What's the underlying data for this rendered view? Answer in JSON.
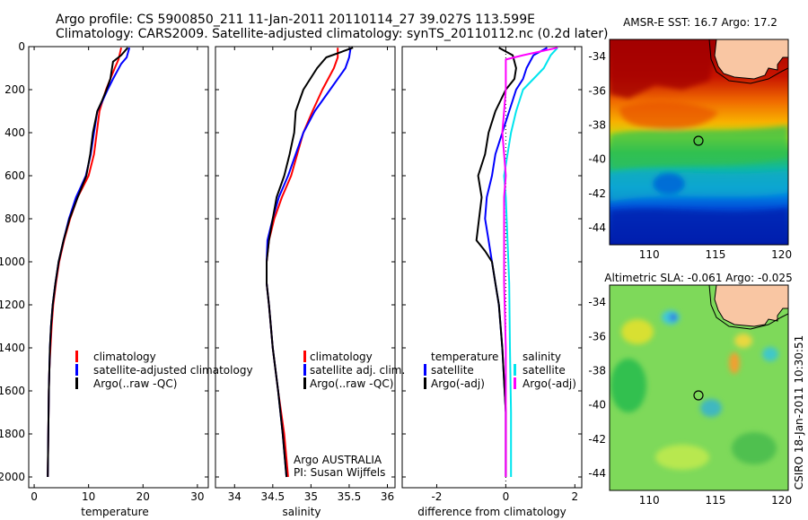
{
  "header": {
    "line1": "Argo profile: CS 5900850_211 11-Jan-2011 20110114_27 39.027S 113.599E",
    "line2": "Climatology: CARS2009. Satellite-adjusted climatology: synTS_20110112.nc (0.2d later)"
  },
  "sst_map": {
    "title": "AMSR-E SST: 16.7 Argo: 17.2"
  },
  "sla_map": {
    "title": "Altimetric SLA: -0.061 Argo: -0.025"
  },
  "side_label": "CSIRO 18-Jan-2011 10:30:51",
  "footnote": {
    "line1": "Argo AUSTRALIA",
    "line2": "PI: Susan Wijffels"
  },
  "colors": {
    "climatology": "#ff0000",
    "satellite": "#0000ff",
    "argo": "#000000",
    "salinity_satellite": "#00e5ee",
    "salinity_argo": "#ff00ff"
  },
  "chart_data": [
    {
      "type": "line",
      "id": "temperature",
      "xlabel": "temperature",
      "ylabel": "",
      "xlim": [
        -1,
        32
      ],
      "ylim": [
        2050,
        0
      ],
      "xticks": [
        0,
        10,
        20,
        30
      ],
      "yticks": [
        0,
        200,
        400,
        600,
        800,
        1000,
        1200,
        1400,
        1600,
        1800,
        2000
      ],
      "legend": [
        "climatology",
        "satellite-adjusted climatology",
        "Argo(..raw -QC)"
      ],
      "series": [
        {
          "name": "climatology",
          "color": "#ff0000",
          "x": [
            16.0,
            15.5,
            14.8,
            14.0,
            13.2,
            12.6,
            12.0,
            11.5,
            11.0,
            10.0,
            9.0,
            8.0,
            6.6,
            5.5,
            4.6,
            4.0,
            3.5,
            3.2,
            3.0,
            2.8,
            2.7,
            2.6,
            2.5
          ],
          "y": [
            5,
            60,
            100,
            150,
            200,
            250,
            300,
            400,
            500,
            600,
            650,
            700,
            800,
            900,
            1000,
            1100,
            1200,
            1300,
            1400,
            1500,
            1600,
            1800,
            2000
          ]
        },
        {
          "name": "satellite-adjusted climatology",
          "color": "#0000ff",
          "x": [
            17.5,
            17.0,
            16.0,
            14.5,
            13.5,
            12.6,
            11.6,
            11.0,
            10.4,
            9.5,
            8.6,
            7.7,
            6.4,
            5.4,
            4.5,
            3.9,
            3.4,
            3.1,
            2.9,
            2.8,
            2.7,
            2.6,
            2.5
          ],
          "y": [
            5,
            50,
            80,
            150,
            200,
            250,
            300,
            400,
            500,
            600,
            650,
            700,
            800,
            900,
            1000,
            1100,
            1200,
            1300,
            1400,
            1500,
            1600,
            1800,
            2000
          ]
        },
        {
          "name": "Argo(..raw -QC)",
          "color": "#000000",
          "x": [
            17.2,
            16.0,
            14.5,
            14.0,
            13.3,
            12.5,
            11.6,
            10.8,
            10.3,
            9.6,
            8.8,
            8.0,
            6.5,
            5.4,
            4.5,
            3.9,
            3.4,
            3.1,
            2.9,
            2.8,
            2.7,
            2.6,
            2.5
          ],
          "y": [
            5,
            40,
            70,
            150,
            200,
            250,
            300,
            400,
            500,
            600,
            650,
            700,
            800,
            900,
            1000,
            1100,
            1200,
            1300,
            1400,
            1500,
            1600,
            1800,
            2000
          ]
        }
      ]
    },
    {
      "type": "line",
      "id": "salinity",
      "xlabel": "salinity",
      "ylabel": "",
      "xlim": [
        33.75,
        36.1
      ],
      "ylim": [
        2050,
        0
      ],
      "xticks": [
        34,
        34.5,
        35,
        35.5,
        36
      ],
      "legend": [
        "climatology",
        "satellite adj. clim.",
        "Argo(..raw -QC)"
      ],
      "series": [
        {
          "name": "climatology",
          "color": "#ff0000",
          "x": [
            35.35,
            35.35,
            35.3,
            35.15,
            35.02,
            34.9,
            34.82,
            34.74,
            34.62,
            34.52,
            34.45,
            34.42,
            34.42,
            34.45,
            34.5,
            34.57,
            34.65,
            34.7
          ],
          "y": [
            5,
            50,
            100,
            200,
            300,
            400,
            500,
            600,
            700,
            800,
            900,
            1000,
            1100,
            1200,
            1400,
            1600,
            1800,
            2000
          ]
        },
        {
          "name": "satellite adj. clim.",
          "color": "#0000ff",
          "x": [
            35.52,
            35.5,
            35.45,
            35.25,
            35.05,
            34.9,
            34.8,
            34.7,
            34.58,
            34.5,
            34.43,
            34.42,
            34.42,
            34.45,
            34.5,
            34.57,
            34.63,
            34.68
          ],
          "y": [
            5,
            50,
            100,
            200,
            300,
            400,
            500,
            600,
            700,
            800,
            900,
            1000,
            1100,
            1200,
            1400,
            1600,
            1800,
            2000
          ]
        },
        {
          "name": "Argo(..raw -QC)",
          "color": "#000000",
          "x": [
            35.55,
            35.2,
            35.08,
            34.9,
            34.8,
            34.78,
            34.72,
            34.65,
            34.55,
            34.5,
            34.45,
            34.42,
            34.42,
            34.45,
            34.5,
            34.57,
            34.63,
            34.68
          ],
          "y": [
            5,
            50,
            100,
            200,
            300,
            400,
            500,
            600,
            700,
            800,
            900,
            1000,
            1100,
            1200,
            1400,
            1600,
            1800,
            2000
          ]
        }
      ]
    },
    {
      "type": "line",
      "id": "difference",
      "xlabel": "difference from climatology",
      "ylabel": "",
      "xlim": [
        -3,
        2.2
      ],
      "ylim": [
        2050,
        0
      ],
      "xticks": [
        -2,
        0,
        2
      ],
      "legend": [
        "temperature",
        "satellite",
        "Argo(-adj)",
        "salinity",
        "satellite",
        "Argo(-adj)"
      ],
      "series": [
        {
          "name": "temperature satellite",
          "color": "#0000ff",
          "x": [
            1.2,
            0.8,
            0.6,
            0.5,
            0.3,
            0.1,
            -0.1,
            -0.3,
            -0.4,
            -0.55,
            -0.6,
            -0.5,
            -0.4,
            -0.3,
            -0.2,
            -0.1,
            0.0,
            0.0
          ],
          "y": [
            5,
            40,
            100,
            150,
            200,
            300,
            400,
            500,
            600,
            700,
            800,
            900,
            1000,
            1100,
            1200,
            1400,
            1700,
            2000
          ]
        },
        {
          "name": "temperature Argo(-adj)",
          "color": "#000000",
          "x": [
            -0.2,
            0.2,
            0.3,
            0.25,
            0.0,
            -0.3,
            -0.5,
            -0.6,
            -0.8,
            -0.7,
            -0.85,
            -0.6,
            -0.4,
            -0.3,
            -0.2,
            -0.1,
            0.0,
            0.0
          ],
          "y": [
            5,
            40,
            100,
            150,
            200,
            300,
            400,
            500,
            600,
            700,
            900,
            950,
            1000,
            1100,
            1200,
            1400,
            1700,
            2000
          ]
        },
        {
          "name": "salinity satellite",
          "color": "#00e5ee",
          "x": [
            1.5,
            1.3,
            1.1,
            0.8,
            0.5,
            0.3,
            0.15,
            0.05,
            -0.05,
            0.0,
            0.05,
            0.1,
            0.12,
            0.15,
            0.15
          ],
          "y": [
            5,
            40,
            100,
            150,
            200,
            300,
            400,
            500,
            600,
            700,
            900,
            1100,
            1400,
            1700,
            2000
          ]
        },
        {
          "name": "salinity Argo(-adj)",
          "color": "#ff00ff",
          "x": [
            1.5,
            0.5,
            0.0,
            0.0,
            0.0,
            -0.05,
            -0.1,
            -0.05,
            0.0,
            -0.05,
            -0.05,
            -0.05,
            0.0,
            0.0,
            0.0
          ],
          "y": [
            5,
            40,
            60,
            100,
            200,
            300,
            400,
            500,
            600,
            700,
            900,
            1100,
            1400,
            1700,
            2000
          ]
        }
      ]
    },
    {
      "type": "heatmap",
      "id": "sst_map",
      "title": "AMSR-E SST: 16.7 Argo: 17.2",
      "xlim": [
        107,
        120.5
      ],
      "ylim": [
        -45,
        -33
      ],
      "xticks": [
        110,
        115,
        120
      ],
      "yticks": [
        -34,
        -36,
        -38,
        -40,
        -42,
        -44
      ],
      "marker": {
        "lon": 113.6,
        "lat": -39.03
      }
    },
    {
      "type": "heatmap",
      "id": "sla_map",
      "title": "Altimetric SLA: -0.061 Argo: -0.025",
      "xlim": [
        107,
        120.5
      ],
      "ylim": [
        -45,
        -33
      ],
      "xticks": [
        110,
        115,
        120
      ],
      "yticks": [
        -34,
        -36,
        -38,
        -40,
        -42,
        -44
      ],
      "marker": {
        "lon": 113.6,
        "lat": -39.03
      }
    }
  ]
}
